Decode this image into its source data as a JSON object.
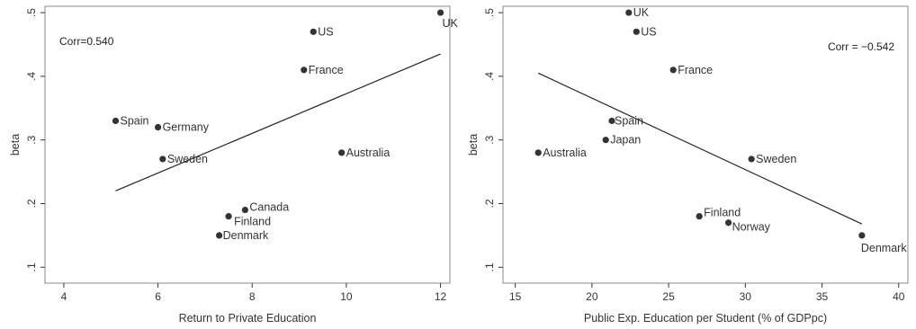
{
  "chart_data": [
    {
      "type": "scatter",
      "xlabel": "Return to Private Education",
      "ylabel": "beta",
      "xlim": [
        3.6,
        12.2
      ],
      "ylim": [
        0.075,
        0.51
      ],
      "xticks": [
        4,
        6,
        8,
        10,
        12
      ],
      "yticks": [
        0.1,
        0.2,
        0.3,
        0.4,
        0.5
      ],
      "ytick_labels": [
        ".1",
        ".2",
        ".3",
        ".4",
        ".5"
      ],
      "grid": false,
      "annotation": "Corr=0.540",
      "fit_line": {
        "x": [
          5.1,
          12.0
        ],
        "y": [
          0.22,
          0.435
        ]
      },
      "points": [
        {
          "label": "UK",
          "x": 12.0,
          "y": 0.5
        },
        {
          "label": "US",
          "x": 9.3,
          "y": 0.47
        },
        {
          "label": "France",
          "x": 9.1,
          "y": 0.41
        },
        {
          "label": "Spain",
          "x": 5.1,
          "y": 0.33
        },
        {
          "label": "Germany",
          "x": 6.0,
          "y": 0.32
        },
        {
          "label": "Sweden",
          "x": 6.1,
          "y": 0.27
        },
        {
          "label": "Australia",
          "x": 9.9,
          "y": 0.28
        },
        {
          "label": "Canada",
          "x": 7.85,
          "y": 0.19
        },
        {
          "label": "Finland",
          "x": 7.5,
          "y": 0.18
        },
        {
          "label": "Denmark",
          "x": 7.3,
          "y": 0.15
        }
      ]
    },
    {
      "type": "scatter",
      "xlabel": "Public Exp. Education per Student (% of GDPpc)",
      "ylabel": "beta",
      "xlim": [
        14.2,
        40.6
      ],
      "ylim": [
        0.075,
        0.51
      ],
      "xticks": [
        15,
        20,
        25,
        30,
        35,
        40
      ],
      "yticks": [
        0.1,
        0.2,
        0.3,
        0.4,
        0.5
      ],
      "ytick_labels": [
        ".1",
        ".2",
        ".3",
        ".4",
        ".5"
      ],
      "grid": false,
      "annotation": "Corr = −0.542",
      "fit_line": {
        "x": [
          16.5,
          37.6
        ],
        "y": [
          0.405,
          0.168
        ]
      },
      "points": [
        {
          "label": "UK",
          "x": 22.4,
          "y": 0.5
        },
        {
          "label": "US",
          "x": 22.9,
          "y": 0.47
        },
        {
          "label": "France",
          "x": 25.3,
          "y": 0.41
        },
        {
          "label": "Spain",
          "x": 21.3,
          "y": 0.33
        },
        {
          "label": "Japan",
          "x": 20.9,
          "y": 0.3
        },
        {
          "label": "Australia",
          "x": 16.5,
          "y": 0.28
        },
        {
          "label": "Sweden",
          "x": 30.4,
          "y": 0.27
        },
        {
          "label": "Finland",
          "x": 27.0,
          "y": 0.18
        },
        {
          "label": "Norway",
          "x": 28.9,
          "y": 0.17
        },
        {
          "label": "Denmark",
          "x": 37.6,
          "y": 0.15
        }
      ]
    }
  ]
}
